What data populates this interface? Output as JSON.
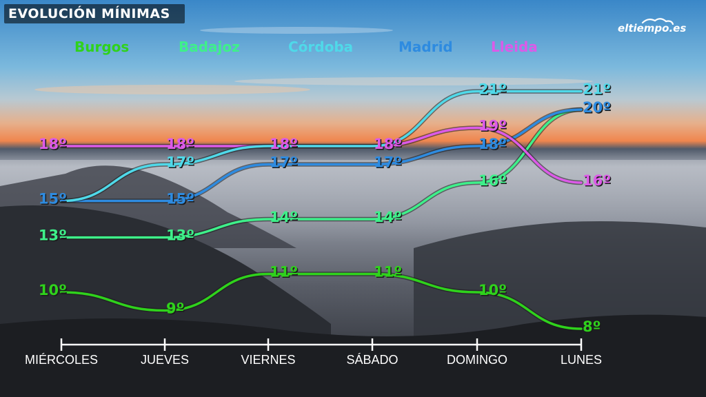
{
  "header": {
    "title": "EVOLUCIÓN MÍNIMAS"
  },
  "brand": {
    "logo_text": "eltiempo.es"
  },
  "legend": [
    {
      "label": "Burgos",
      "color": "#2fd21c"
    },
    {
      "label": "Badajoz",
      "color": "#3ef08a"
    },
    {
      "label": "Córdoba",
      "color": "#4fd9e9"
    },
    {
      "label": "Madrid",
      "color": "#2e8be0"
    },
    {
      "label": "Lleida",
      "color": "#dc5ae8"
    }
  ],
  "chart_data": {
    "type": "line",
    "categories": [
      "MIÉRCOLES",
      "JUEVES",
      "VIERNES",
      "SÁBADO",
      "DOMINGO",
      "LUNES"
    ],
    "series": [
      {
        "name": "Burgos",
        "color": "#2fd21c",
        "values": [
          10,
          9,
          11,
          11,
          10,
          8
        ]
      },
      {
        "name": "Badajoz",
        "color": "#3ef08a",
        "values": [
          13,
          13,
          14,
          14,
          16,
          20
        ]
      },
      {
        "name": "Córdoba",
        "color": "#4fd9e9",
        "values": [
          15,
          17,
          18,
          18,
          21,
          21
        ]
      },
      {
        "name": "Madrid",
        "color": "#2e8be0",
        "values": [
          15,
          15,
          17,
          17,
          18,
          20
        ]
      },
      {
        "name": "Lleida",
        "color": "#dc5ae8",
        "values": [
          18,
          18,
          18,
          18,
          19,
          16
        ]
      }
    ],
    "labels": [
      {
        "series": "Burgos",
        "text": [
          "10º",
          "9º",
          "11º",
          "11º",
          "10º",
          "8º"
        ]
      },
      {
        "series": "Badajoz",
        "text": [
          "13º",
          "13º",
          "14º",
          "14º",
          "16º",
          ""
        ]
      },
      {
        "series": "Córdoba",
        "text": [
          "",
          "17º",
          "",
          "",
          "21º",
          "21º"
        ]
      },
      {
        "series": "Madrid",
        "text": [
          "15º",
          "15º",
          "17º",
          "17º",
          "18º",
          "20º"
        ]
      },
      {
        "series": "Lleida",
        "text": [
          "18º",
          "18º",
          "18º",
          "18º",
          "19º",
          "16º"
        ]
      }
    ],
    "unit": "º",
    "ylim": [
      8,
      21
    ],
    "grid": false,
    "legend_position": "top",
    "axis_color": "#ffffff"
  }
}
